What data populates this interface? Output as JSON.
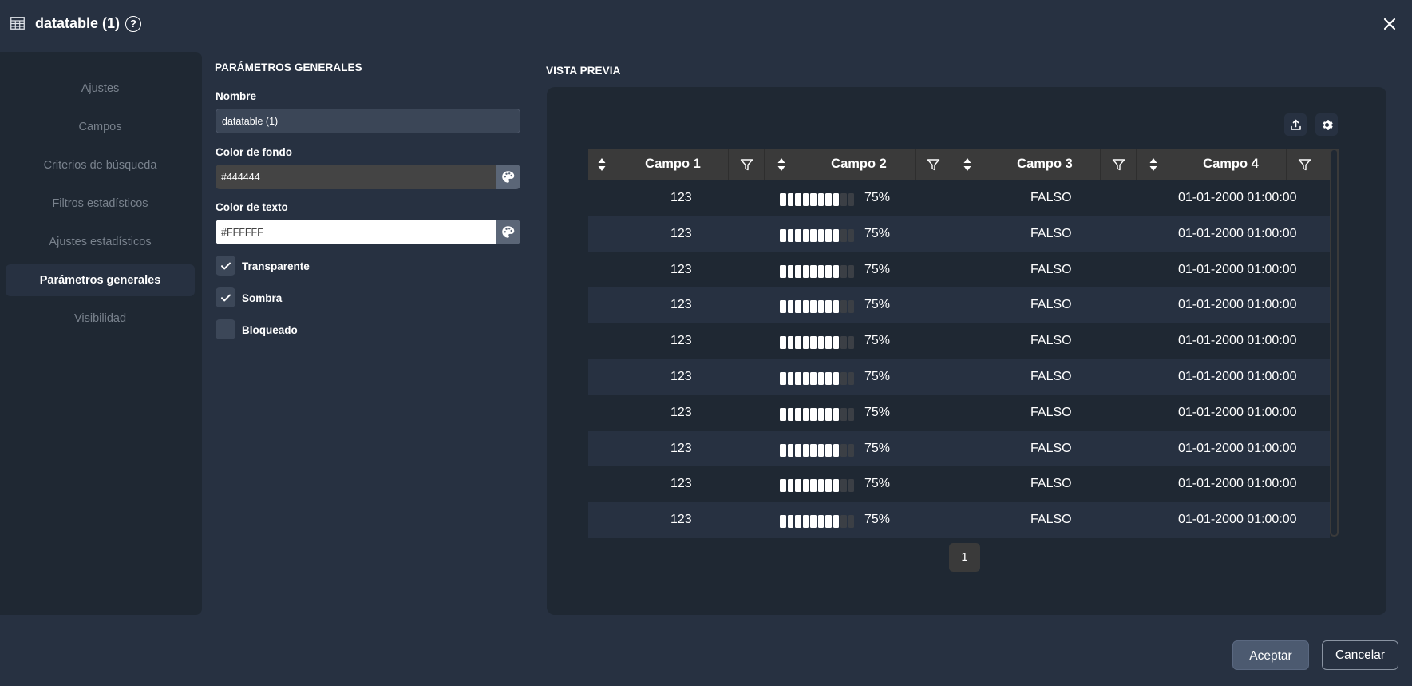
{
  "header": {
    "title": "datatable (1)",
    "help_symbol": "?"
  },
  "sidebar": {
    "items": [
      {
        "label": "Ajustes",
        "active": false
      },
      {
        "label": "Campos",
        "active": false
      },
      {
        "label": "Criterios de búsqueda",
        "active": false
      },
      {
        "label": "Filtros estadísticos",
        "active": false
      },
      {
        "label": "Ajustes estadísticos",
        "active": false
      },
      {
        "label": "Parámetros generales",
        "active": true
      },
      {
        "label": "Visibilidad",
        "active": false
      }
    ]
  },
  "params": {
    "section_title": "PARÁMETROS GENERALES",
    "name_label": "Nombre",
    "name_value": "datatable (1)",
    "bg_color_label": "Color de fondo",
    "bg_color_value": "#444444",
    "text_color_label": "Color de texto",
    "text_color_value": "#FFFFFF",
    "checkboxes": [
      {
        "label": "Transparente",
        "checked": true
      },
      {
        "label": "Sombra",
        "checked": true
      },
      {
        "label": "Bloqueado",
        "checked": false
      }
    ]
  },
  "preview": {
    "section_title": "VISTA PREVIA",
    "columns": [
      "Campo 1",
      "Campo 2",
      "Campo 3",
      "Campo 4"
    ],
    "rows": [
      {
        "c1": "123",
        "c2_fraction": 0.75,
        "c2": "75%",
        "c3": "FALSO",
        "c4": "01-01-2000 01:00:00"
      },
      {
        "c1": "123",
        "c2_fraction": 0.75,
        "c2": "75%",
        "c3": "FALSO",
        "c4": "01-01-2000 01:00:00"
      },
      {
        "c1": "123",
        "c2_fraction": 0.75,
        "c2": "75%",
        "c3": "FALSO",
        "c4": "01-01-2000 01:00:00"
      },
      {
        "c1": "123",
        "c2_fraction": 0.75,
        "c2": "75%",
        "c3": "FALSO",
        "c4": "01-01-2000 01:00:00"
      },
      {
        "c1": "123",
        "c2_fraction": 0.75,
        "c2": "75%",
        "c3": "FALSO",
        "c4": "01-01-2000 01:00:00"
      },
      {
        "c1": "123",
        "c2_fraction": 0.75,
        "c2": "75%",
        "c3": "FALSO",
        "c4": "01-01-2000 01:00:00"
      },
      {
        "c1": "123",
        "c2_fraction": 0.75,
        "c2": "75%",
        "c3": "FALSO",
        "c4": "01-01-2000 01:00:00"
      },
      {
        "c1": "123",
        "c2_fraction": 0.75,
        "c2": "75%",
        "c3": "FALSO",
        "c4": "01-01-2000 01:00:00"
      },
      {
        "c1": "123",
        "c2_fraction": 0.75,
        "c2": "75%",
        "c3": "FALSO",
        "c4": "01-01-2000 01:00:00"
      },
      {
        "c1": "123",
        "c2_fraction": 0.75,
        "c2": "75%",
        "c3": "FALSO",
        "c4": "01-01-2000 01:00:00"
      }
    ],
    "page": "1"
  },
  "footer": {
    "accept_label": "Aceptar",
    "cancel_label": "Cancelar"
  },
  "colors": {
    "background": "#273141",
    "panel": "#1f2833",
    "table_header": "#3a3a3a",
    "accent_button": "#4c5a70"
  }
}
